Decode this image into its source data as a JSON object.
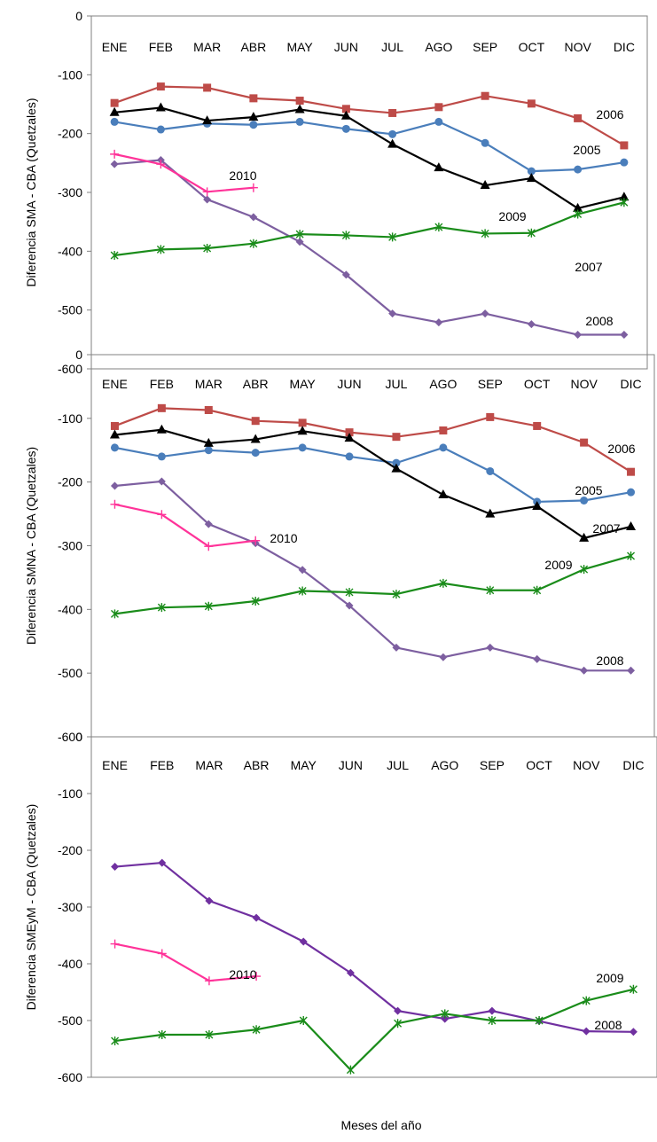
{
  "xlabel": "Meses del año",
  "chart_data": [
    {
      "type": "line",
      "ylabel": "Diferencia  SMA - CBA (Quetzales)",
      "ylim": [
        -600,
        0
      ],
      "yticks": [
        "0",
        "-100",
        "-200",
        "-300",
        "-400",
        "-500",
        "-600"
      ],
      "categories": [
        "ENE",
        "FEB",
        "MAR",
        "ABR",
        "MAY",
        "JUN",
        "JUL",
        "AGO",
        "SEP",
        "OCT",
        "NOV",
        "DIC"
      ],
      "series": [
        {
          "name": "2005",
          "label_text": "2005",
          "color": "#4a7ebb",
          "marker": "circle",
          "values": [
            -180,
            -193,
            -183,
            -185,
            -180,
            -192,
            -201,
            -180,
            -216,
            -264,
            -261,
            -249
          ]
        },
        {
          "name": "2006",
          "label_text": "2006",
          "color": "#be4b48",
          "marker": "square",
          "values": [
            -148,
            -120,
            -122,
            -140,
            -144,
            -158,
            -165,
            -155,
            -136,
            -149,
            -174,
            -220
          ]
        },
        {
          "name": "2007",
          "label_text": "2007",
          "color": "#000000",
          "marker": "triangle",
          "values": [
            -164,
            -156,
            -178,
            -172,
            -159,
            -170,
            -218,
            -258,
            -288,
            -276,
            -327,
            -308
          ]
        },
        {
          "name": "2008",
          "label_text": "2008",
          "color": "#7d5fa0",
          "marker": "diamond",
          "values": [
            -252,
            -245,
            -312,
            -342,
            -384,
            -440,
            -506,
            -521,
            -506,
            -524,
            -542,
            -542
          ]
        },
        {
          "name": "2009",
          "label_text": "2009",
          "color": "#1a8c1a",
          "marker": "asterisk",
          "values": [
            -407,
            -397,
            -395,
            -387,
            -371,
            -373,
            -376,
            -359,
            -370,
            -369,
            -337,
            -317
          ]
        },
        {
          "name": "2010",
          "label_text": "2010",
          "color": "#ff3399",
          "marker": "plus",
          "values": [
            -235,
            -252,
            -299,
            -292,
            null,
            null,
            null,
            null,
            null,
            null,
            null,
            null
          ]
        }
      ]
    },
    {
      "type": "line",
      "ylabel": "Diferencia  SMNA - CBA (Quetzales)",
      "ylim": [
        -600,
        0
      ],
      "yticks": [
        "0",
        "-100",
        "-200",
        "-300",
        "-400",
        "-500",
        "-600"
      ],
      "categories": [
        "ENE",
        "FEB",
        "MAR",
        "ABR",
        "MAY",
        "JUN",
        "JUL",
        "AGO",
        "SEP",
        "OCT",
        "NOV",
        "DIC"
      ],
      "series": [
        {
          "name": "2005",
          "label_text": "2005",
          "color": "#4a7ebb",
          "marker": "circle",
          "values": [
            -146,
            -160,
            -150,
            -154,
            -146,
            -160,
            -170,
            -146,
            -183,
            -231,
            -229,
            -216
          ]
        },
        {
          "name": "2006",
          "label_text": "2006",
          "color": "#be4b48",
          "marker": "square",
          "values": [
            -112,
            -84,
            -87,
            -104,
            -107,
            -122,
            -129,
            -119,
            -98,
            -112,
            -138,
            -184
          ]
        },
        {
          "name": "2007",
          "label_text": "2007",
          "color": "#000000",
          "marker": "triangle",
          "values": [
            -126,
            -118,
            -139,
            -133,
            -120,
            -131,
            -179,
            -220,
            -250,
            -238,
            -288,
            -270
          ]
        },
        {
          "name": "2008",
          "label_text": "2008",
          "color": "#7d5fa0",
          "marker": "diamond",
          "values": [
            -206,
            -199,
            -266,
            -296,
            -338,
            -394,
            -460,
            -475,
            -460,
            -478,
            -496,
            -496
          ]
        },
        {
          "name": "2009",
          "label_text": "2009",
          "color": "#1a8c1a",
          "marker": "asterisk",
          "values": [
            -407,
            -397,
            -395,
            -387,
            -371,
            -373,
            -376,
            -359,
            -370,
            -370,
            -337,
            -316
          ]
        },
        {
          "name": "2010",
          "label_text": "2010",
          "color": "#ff3399",
          "marker": "plus",
          "values": [
            -235,
            -251,
            -301,
            -292,
            null,
            null,
            null,
            null,
            null,
            null,
            null,
            null
          ]
        }
      ]
    },
    {
      "type": "line",
      "ylabel": "Diferencia SMEyM - CBA (Quetzales)",
      "ylim": [
        -600,
        0
      ],
      "yticks": [
        "0",
        "-100",
        "-200",
        "-300",
        "-400",
        "-500",
        "-600"
      ],
      "categories": [
        "ENE",
        "FEB",
        "MAR",
        "ABR",
        "MAY",
        "JUN",
        "JUL",
        "AGO",
        "SEP",
        "OCT",
        "NOV",
        "DIC"
      ],
      "series": [
        {
          "name": "2008",
          "label_text": "2008",
          "color": "#7030a0",
          "marker": "diamond",
          "values": [
            -229,
            -222,
            -289,
            -319,
            -361,
            -416,
            -483,
            -497,
            -483,
            -501,
            -519,
            -520
          ]
        },
        {
          "name": "2009",
          "label_text": "2009",
          "color": "#1a8c1a",
          "marker": "asterisk",
          "values": [
            -536,
            -525,
            -525,
            -516,
            -500,
            -587,
            -505,
            -488,
            -500,
            -500,
            -465,
            -445
          ]
        },
        {
          "name": "2010",
          "label_text": "2010",
          "color": "#ff3399",
          "marker": "plus",
          "values": [
            -365,
            -382,
            -430,
            -422,
            null,
            null,
            null,
            null,
            null,
            null,
            null,
            null
          ]
        }
      ]
    }
  ]
}
